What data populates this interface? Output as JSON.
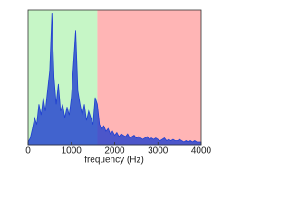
{
  "chart_data": {
    "type": "area",
    "xlabel": "frequency (Hz)",
    "x": [
      0,
      50,
      100,
      150,
      200,
      250,
      300,
      350,
      400,
      450,
      500,
      550,
      600,
      650,
      700,
      750,
      800,
      850,
      900,
      950,
      1000,
      1050,
      1100,
      1150,
      1200,
      1250,
      1300,
      1350,
      1400,
      1450,
      1500,
      1550,
      1600,
      1650,
      1700,
      1750,
      1800,
      1850,
      1900,
      1950,
      2000,
      2050,
      2100,
      2150,
      2200,
      2250,
      2300,
      2350,
      2400,
      2450,
      2500,
      2550,
      2600,
      2650,
      2700,
      2750,
      2800,
      2850,
      2900,
      2950,
      3000,
      3050,
      3100,
      3150,
      3200,
      3250,
      3300,
      3350,
      3400,
      3450,
      3500,
      3550,
      3600,
      3650,
      3700,
      3750,
      3800,
      3850,
      3900,
      3950,
      4000
    ],
    "series": [
      {
        "color": "#1f3fd0",
        "values": [
          0.02,
          0.05,
          0.12,
          0.2,
          0.15,
          0.3,
          0.22,
          0.35,
          0.25,
          0.4,
          0.55,
          0.98,
          0.5,
          0.3,
          0.45,
          0.25,
          0.3,
          0.2,
          0.28,
          0.22,
          0.35,
          0.6,
          0.85,
          0.4,
          0.3,
          0.22,
          0.3,
          0.18,
          0.25,
          0.2,
          0.15,
          0.35,
          0.3,
          0.15,
          0.12,
          0.14,
          0.1,
          0.12,
          0.08,
          0.1,
          0.07,
          0.09,
          0.06,
          0.08,
          0.07,
          0.06,
          0.08,
          0.05,
          0.06,
          0.07,
          0.05,
          0.06,
          0.05,
          0.04,
          0.05,
          0.06,
          0.04,
          0.05,
          0.04,
          0.05,
          0.04,
          0.03,
          0.04,
          0.05,
          0.03,
          0.04,
          0.03,
          0.04,
          0.03,
          0.03,
          0.04,
          0.03,
          0.02,
          0.03,
          0.02,
          0.03,
          0.02,
          0.03,
          0.02,
          0.02,
          0.02
        ]
      }
    ],
    "spans": [
      {
        "from": 0,
        "to": 1600,
        "color": "#c6f6c6"
      },
      {
        "from": 1600,
        "to": 4000,
        "color": "#ffb5b5"
      }
    ],
    "xlim": [
      0,
      4000
    ],
    "xticks": [
      0,
      1000,
      2000,
      3000,
      4000
    ],
    "ylim": [
      0,
      1
    ]
  }
}
